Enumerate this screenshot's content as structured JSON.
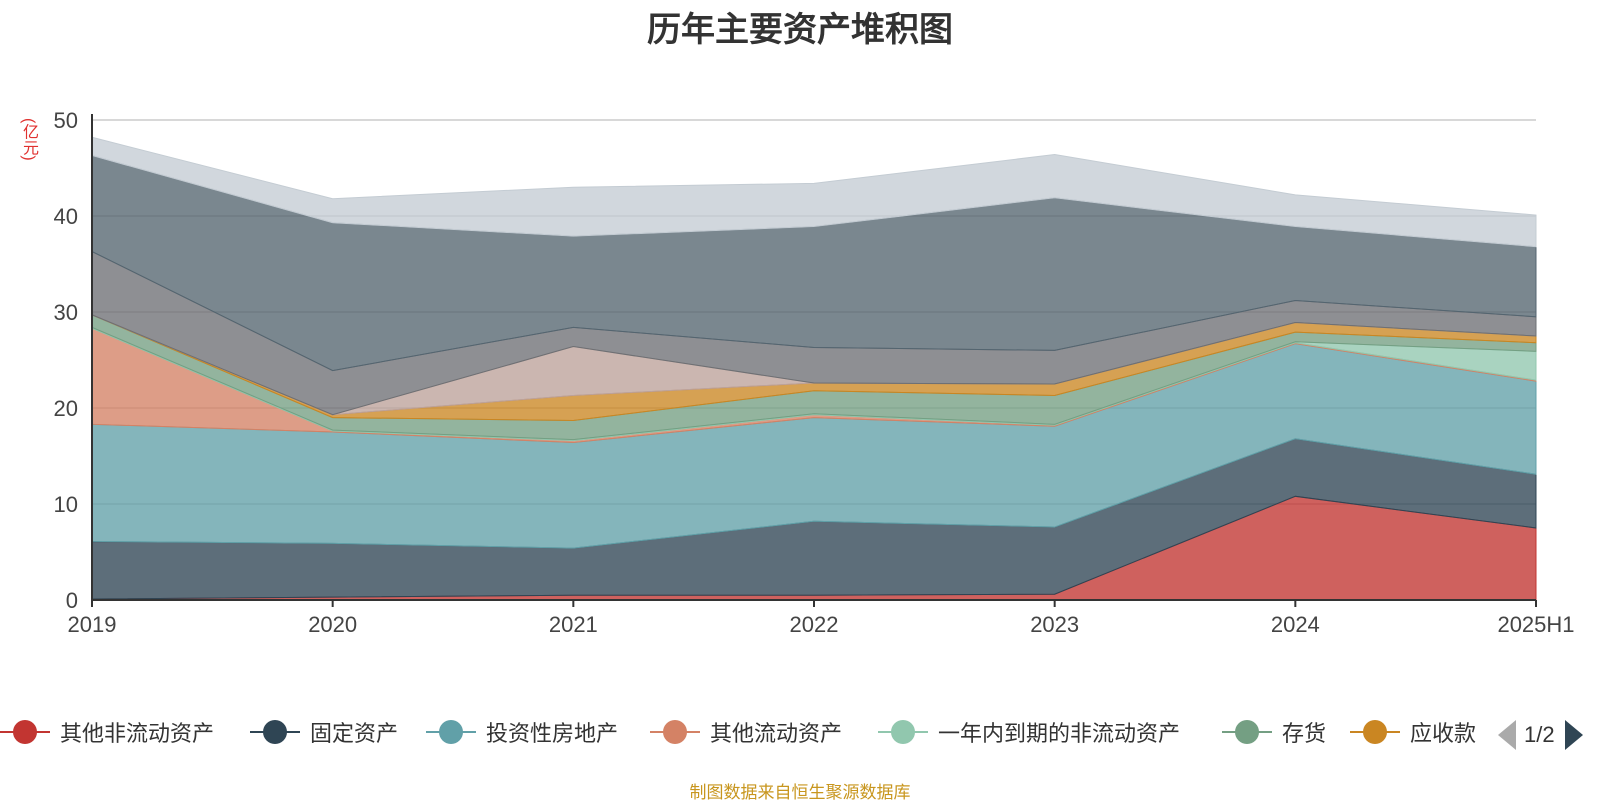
{
  "chart_data": {
    "type": "area",
    "stacked": true,
    "title": "历年主要资产堆积图",
    "unit_label": "(亿元)",
    "categories": [
      "2019",
      "2020",
      "2021",
      "2022",
      "2023",
      "2024",
      "2025H1"
    ],
    "ylim": [
      0,
      50
    ],
    "yticks": [
      0,
      10,
      20,
      30,
      40,
      50
    ],
    "grid": true,
    "legend_position": "bottom",
    "series": [
      {
        "name": "其他非流动资产",
        "color": "#c23531",
        "values": [
          0.1,
          0.3,
          0.5,
          0.5,
          0.6,
          10.8,
          7.5
        ]
      },
      {
        "name": "固定资产",
        "color": "#2f4554",
        "values": [
          6.0,
          5.6,
          4.9,
          7.7,
          7.0,
          6.0,
          5.6
        ]
      },
      {
        "name": "投资性房地产",
        "color": "#61a0a8",
        "values": [
          12.2,
          11.6,
          11.0,
          10.8,
          10.5,
          9.9,
          9.7
        ]
      },
      {
        "name": "其他流动资产",
        "color": "#d48265",
        "values": [
          10.0,
          0.1,
          0.2,
          0.3,
          0.1,
          0.1,
          0.1
        ]
      },
      {
        "name": "一年内到期的非流动资产",
        "color": "#91c7ae",
        "values": [
          0.1,
          0.1,
          0.1,
          0.1,
          0.1,
          0.1,
          3.0
        ]
      },
      {
        "name": "存货",
        "color": "#749f83",
        "values": [
          1.3,
          1.3,
          2.0,
          2.4,
          3.0,
          1.0,
          0.9
        ]
      },
      {
        "name": "应收款",
        "color": "#ca8622",
        "values": [
          0.0,
          0.3,
          2.6,
          0.8,
          1.2,
          1.0,
          0.7
        ]
      },
      {
        "color": "#bda29a",
        "values": [
          0.0,
          0.0,
          5.1,
          0.0,
          0.0,
          0.0,
          0.0
        ]
      },
      {
        "color": "#6e7074",
        "values": [
          6.6,
          4.6,
          2.0,
          3.7,
          3.5,
          2.3,
          2.0
        ]
      },
      {
        "color": "#546570",
        "values": [
          10.0,
          15.4,
          9.5,
          12.6,
          15.9,
          7.7,
          7.3
        ]
      },
      {
        "color": "#c4ccd3",
        "values": [
          1.9,
          2.5,
          5.1,
          4.5,
          4.5,
          3.3,
          3.3
        ]
      }
    ]
  },
  "legend": {
    "page_indicator": "1/2"
  },
  "source_text": "制图数据来自恒生聚源数据库"
}
